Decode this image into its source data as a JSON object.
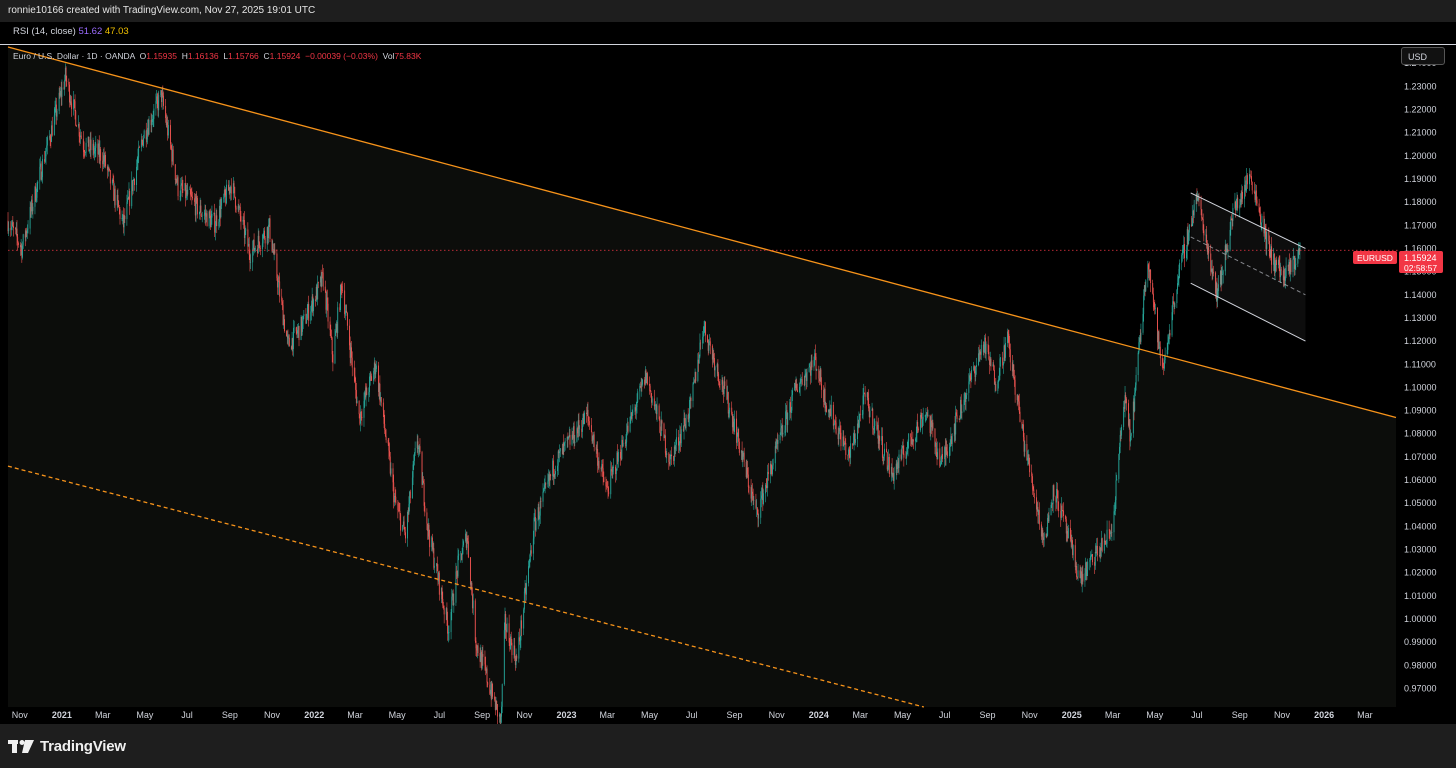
{
  "attribution": "ronnie10166 created with TradingView.com, Nov 27, 2025 19:01 UTC",
  "rsi": {
    "label": "RSI (14, close)",
    "value1": "51.62",
    "value2": "47.03",
    "value1_color": "#9b6cff",
    "value2_color": "#f0c000"
  },
  "legend": {
    "symbol": "Euro / U.S. Dollar · 1D · OANDA",
    "o_key": "O",
    "o": "1.15935",
    "h_key": "H",
    "h": "1.16136",
    "l_key": "L",
    "l": "1.15766",
    "c_key": "C",
    "c": "1.15924",
    "change": "−0.00039 (−0.03%)",
    "vol_key": "Vol",
    "vol": "75.83K"
  },
  "currency": "USD",
  "price_tag": {
    "symbol": "EURUSD",
    "price": "1.15924",
    "countdown": "02:58:57"
  },
  "footer": {
    "brand": "TradingView"
  },
  "colors": {
    "up": "#26a69a",
    "down": "#ef5350",
    "trendline": "#f7931a",
    "channel": "#d1d4dc",
    "price_line": "#f23645",
    "background": "#000000"
  },
  "chart_data": {
    "type": "candlestick",
    "symbol": "EURUSD",
    "timeframe": "1D",
    "y_axis": {
      "ticks": [
        "1.24000",
        "1.23000",
        "1.22000",
        "1.21000",
        "1.20000",
        "1.19000",
        "1.18000",
        "1.17000",
        "1.16000",
        "1.15000",
        "1.14000",
        "1.13000",
        "1.12000",
        "1.11000",
        "1.10000",
        "1.09000",
        "1.08000",
        "1.07000",
        "1.06000",
        "1.05000",
        "1.04000",
        "1.03000",
        "1.02000",
        "1.01000",
        "1.00000",
        "0.99000",
        "0.98000",
        "0.97000"
      ],
      "range": [
        0.962,
        1.247
      ]
    },
    "x_axis": {
      "ticks": [
        "Nov",
        "2021",
        "Mar",
        "May",
        "Jul",
        "Sep",
        "Nov",
        "2022",
        "Mar",
        "May",
        "Jul",
        "Sep",
        "Nov",
        "2023",
        "Mar",
        "May",
        "Jul",
        "Sep",
        "Nov",
        "2024",
        "Mar",
        "May",
        "Jul",
        "Sep",
        "Nov",
        "2025",
        "Mar",
        "May",
        "Jul",
        "Sep",
        "Nov",
        "2026",
        "Mar"
      ],
      "bold": [
        "2021",
        "2022",
        "2023",
        "2024",
        "2025",
        "2026"
      ],
      "range": [
        "2020-10-15",
        "2026-04-15"
      ]
    },
    "last_price": 1.15924,
    "price_path": [
      [
        "2020-10-15",
        1.172
      ],
      [
        "2020-11-04",
        1.16
      ],
      [
        "2020-12-01",
        1.193
      ],
      [
        "2021-01-06",
        1.234
      ],
      [
        "2021-02-01",
        1.205
      ],
      [
        "2021-03-01",
        1.2
      ],
      [
        "2021-03-31",
        1.17
      ],
      [
        "2021-04-29",
        1.209
      ],
      [
        "2021-05-25",
        1.226
      ],
      [
        "2021-06-18",
        1.186
      ],
      [
        "2021-07-01",
        1.183
      ],
      [
        "2021-07-20",
        1.176
      ],
      [
        "2021-08-10",
        1.171
      ],
      [
        "2021-09-03",
        1.188
      ],
      [
        "2021-09-30",
        1.158
      ],
      [
        "2021-10-28",
        1.169
      ],
      [
        "2021-11-24",
        1.118
      ],
      [
        "2021-12-15",
        1.127
      ],
      [
        "2022-01-14",
        1.147
      ],
      [
        "2022-01-28",
        1.113
      ],
      [
        "2022-02-10",
        1.145
      ],
      [
        "2022-03-07",
        1.087
      ],
      [
        "2022-03-31",
        1.11
      ],
      [
        "2022-04-28",
        1.05
      ],
      [
        "2022-05-13",
        1.036
      ],
      [
        "2022-05-30",
        1.078
      ],
      [
        "2022-06-15",
        1.038
      ],
      [
        "2022-07-14",
        0.996
      ],
      [
        "2022-07-28",
        1.023
      ],
      [
        "2022-08-10",
        1.036
      ],
      [
        "2022-08-23",
        0.99
      ],
      [
        "2022-09-28",
        0.955
      ],
      [
        "2022-10-04",
        0.998
      ],
      [
        "2022-10-21",
        0.982
      ],
      [
        "2022-11-15",
        1.04
      ],
      [
        "2022-12-15",
        1.067
      ],
      [
        "2023-01-31",
        1.088
      ],
      [
        "2023-02-28",
        1.055
      ],
      [
        "2023-04-26",
        1.105
      ],
      [
        "2023-05-31",
        1.068
      ],
      [
        "2023-06-30",
        1.092
      ],
      [
        "2023-07-18",
        1.127
      ],
      [
        "2023-08-31",
        1.085
      ],
      [
        "2023-10-03",
        1.045
      ],
      [
        "2023-11-29",
        1.1
      ],
      [
        "2023-12-27",
        1.112
      ],
      [
        "2024-01-10",
        1.095
      ],
      [
        "2024-02-14",
        1.07
      ],
      [
        "2024-03-08",
        1.096
      ],
      [
        "2024-04-16",
        1.062
      ],
      [
        "2024-06-04",
        1.09
      ],
      [
        "2024-06-26",
        1.067
      ],
      [
        "2024-08-26",
        1.119
      ],
      [
        "2024-09-13",
        1.103
      ],
      [
        "2024-09-30",
        1.121
      ],
      [
        "2024-10-23",
        1.078
      ],
      [
        "2024-11-22",
        1.033
      ],
      [
        "2024-12-06",
        1.057
      ],
      [
        "2025-01-13",
        1.017
      ],
      [
        "2025-02-10",
        1.03
      ],
      [
        "2025-02-28",
        1.038
      ],
      [
        "2025-03-18",
        1.095
      ],
      [
        "2025-03-27",
        1.078
      ],
      [
        "2025-04-21",
        1.157
      ],
      [
        "2025-05-12",
        1.106
      ],
      [
        "2025-06-02",
        1.145
      ],
      [
        "2025-07-01",
        1.183
      ],
      [
        "2025-07-31",
        1.14
      ],
      [
        "2025-08-22",
        1.175
      ],
      [
        "2025-09-17",
        1.192
      ],
      [
        "2025-10-14",
        1.158
      ],
      [
        "2025-11-05",
        1.147
      ],
      [
        "2025-11-27",
        1.159
      ]
    ],
    "drawings": [
      {
        "kind": "trendline",
        "style": "solid",
        "color": "#f7931a",
        "points": [
          [
            "2020-10-15",
            1.247
          ],
          [
            "2026-04-15",
            1.087
          ]
        ]
      },
      {
        "kind": "trendline",
        "style": "dashed",
        "color": "#f7931a",
        "points": [
          [
            "2020-10-15",
            1.066
          ],
          [
            "2024-06-01",
            0.962
          ]
        ]
      },
      {
        "kind": "channel_upper",
        "style": "solid",
        "color": "#d1d4dc",
        "points": [
          [
            "2025-06-22",
            1.184
          ],
          [
            "2025-12-05",
            1.16
          ]
        ]
      },
      {
        "kind": "channel_lower",
        "style": "solid",
        "color": "#d1d4dc",
        "points": [
          [
            "2025-06-22",
            1.145
          ],
          [
            "2025-12-05",
            1.12
          ]
        ]
      },
      {
        "kind": "channel_mid",
        "style": "dashed",
        "color": "#d1d4dc",
        "points": [
          [
            "2025-06-22",
            1.165
          ],
          [
            "2025-12-05",
            1.14
          ]
        ]
      }
    ]
  }
}
